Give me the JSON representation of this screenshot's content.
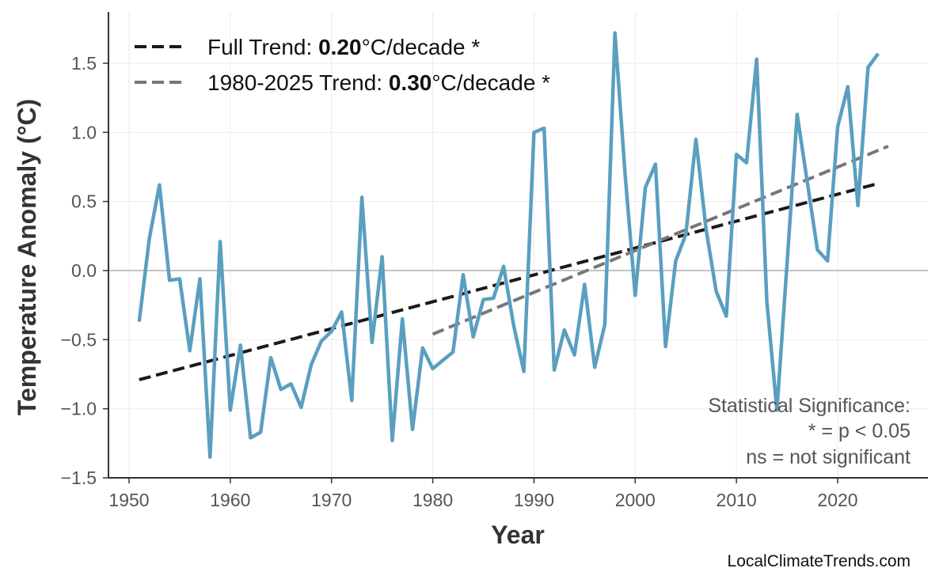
{
  "chart_data": {
    "type": "line",
    "title": "",
    "xlabel": "Year",
    "ylabel": "Temperature Anomaly (°C)",
    "xlim": [
      1948,
      2029
    ],
    "ylim": [
      -1.5,
      1.87
    ],
    "xticks": [
      1950,
      1960,
      1970,
      1980,
      1990,
      2000,
      2010,
      2020
    ],
    "yticks": [
      -1.5,
      -1.0,
      -0.5,
      0.0,
      0.5,
      1.0,
      1.5
    ],
    "ytick_labels": [
      "−1.5",
      "−1.0",
      "−0.5",
      "0.0",
      "0.5",
      "1.0",
      "1.5"
    ],
    "grid": true,
    "zero_line": true,
    "series": [
      {
        "color": "#5a9fc0",
        "x": [
          1951,
          1952,
          1953,
          1954,
          1955,
          1956,
          1957,
          1958,
          1959,
          1960,
          1961,
          1962,
          1963,
          1964,
          1965,
          1966,
          1967,
          1968,
          1969,
          1970,
          1971,
          1972,
          1973,
          1974,
          1975,
          1976,
          1977,
          1978,
          1979,
          1980,
          1981,
          1982,
          1983,
          1984,
          1985,
          1986,
          1987,
          1988,
          1989,
          1990,
          1991,
          1992,
          1993,
          1994,
          1995,
          1996,
          1997,
          1998,
          1999,
          2000,
          2001,
          2002,
          2003,
          2004,
          2005,
          2006,
          2007,
          2008,
          2009,
          2010,
          2011,
          2012,
          2013,
          2014,
          2015,
          2016,
          2017,
          2018,
          2019,
          2020,
          2021,
          2022,
          2023,
          2024
        ],
        "y": [
          -0.37,
          0.23,
          0.62,
          -0.07,
          -0.06,
          -0.58,
          -0.06,
          -1.35,
          0.21,
          -1.01,
          -0.54,
          -1.21,
          -1.17,
          -0.63,
          -0.86,
          -0.82,
          -0.99,
          -0.68,
          -0.51,
          -0.44,
          -0.3,
          -0.94,
          0.53,
          -0.52,
          0.1,
          -1.23,
          -0.35,
          -1.15,
          -0.56,
          -0.71,
          -0.65,
          -0.59,
          -0.03,
          -0.48,
          -0.21,
          -0.2,
          0.03,
          -0.4,
          -0.73,
          1.0,
          1.03,
          -0.72,
          -0.43,
          -0.61,
          -0.1,
          -0.7,
          -0.39,
          1.72,
          0.7,
          -0.18,
          0.6,
          0.77,
          -0.55,
          0.07,
          0.26,
          0.95,
          0.3,
          -0.15,
          -0.33,
          0.84,
          0.78,
          1.53,
          -0.22,
          -1.01,
          0.05,
          1.13,
          0.64,
          0.15,
          0.07,
          1.04,
          1.33,
          0.47,
          1.47,
          1.57
        ]
      }
    ],
    "trends": [
      {
        "name": "Full Trend: ",
        "value": "0.20",
        "unit": "°C/decade *",
        "color": "#1a1a1a",
        "x": [
          1951,
          2024
        ],
        "y": [
          -0.79,
          0.63
        ]
      },
      {
        "name": "1980-2025 Trend: ",
        "value": "0.30",
        "unit": "°C/decade *",
        "color": "#777777",
        "x": [
          1980,
          2025
        ],
        "y": [
          -0.46,
          0.9
        ]
      }
    ],
    "legend_position": "top-left",
    "annotation": [
      "Statistical Significance:",
      "* = p < 0.05",
      "ns = not significant"
    ],
    "watermark": "LocalClimateTrends.com"
  }
}
